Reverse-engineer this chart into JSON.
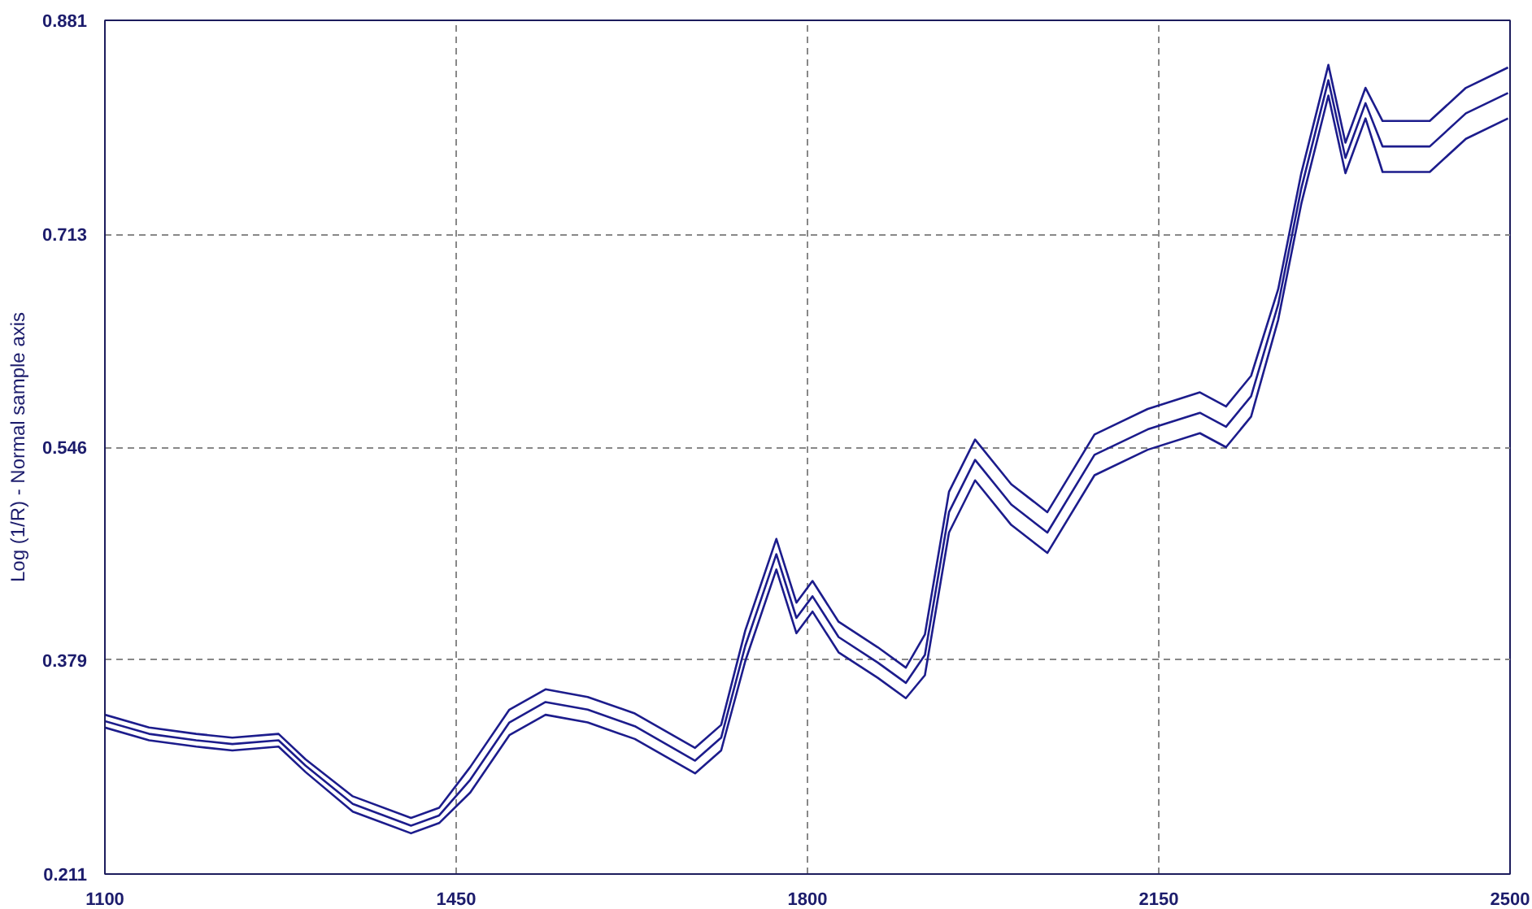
{
  "chart_data": {
    "type": "line",
    "ylabel": "Log (1/R) - Normal sample axis",
    "x": [
      1100,
      1144,
      1191,
      1227,
      1273,
      1300,
      1347,
      1405,
      1433,
      1464,
      1503,
      1539,
      1581,
      1628,
      1688,
      1714,
      1738,
      1769,
      1789,
      1805,
      1831,
      1870,
      1898,
      1917,
      1941,
      1967,
      2003,
      2039,
      2086,
      2139,
      2191,
      2217,
      2242,
      2269,
      2292,
      2319,
      2336,
      2356,
      2373,
      2420,
      2456,
      2498
    ],
    "series": [
      {
        "color": "#1c1c8c",
        "values": [
          0.336,
          0.326,
          0.321,
          0.318,
          0.321,
          0.301,
          0.272,
          0.255,
          0.263,
          0.295,
          0.34,
          0.356,
          0.35,
          0.337,
          0.31,
          0.328,
          0.402,
          0.474,
          0.424,
          0.441,
          0.409,
          0.389,
          0.373,
          0.399,
          0.511,
          0.552,
          0.517,
          0.495,
          0.556,
          0.576,
          0.589,
          0.578,
          0.602,
          0.67,
          0.761,
          0.846,
          0.785,
          0.828,
          0.802,
          0.802,
          0.828,
          0.844
        ]
      },
      {
        "color": "#1c1c8c",
        "values": [
          0.331,
          0.321,
          0.316,
          0.313,
          0.316,
          0.296,
          0.266,
          0.249,
          0.257,
          0.285,
          0.33,
          0.346,
          0.34,
          0.327,
          0.3,
          0.318,
          0.39,
          0.462,
          0.412,
          0.429,
          0.397,
          0.377,
          0.361,
          0.383,
          0.495,
          0.536,
          0.501,
          0.479,
          0.54,
          0.56,
          0.573,
          0.562,
          0.586,
          0.658,
          0.749,
          0.834,
          0.773,
          0.816,
          0.782,
          0.782,
          0.808,
          0.824
        ]
      },
      {
        "color": "#1c1c8c",
        "values": [
          0.326,
          0.316,
          0.311,
          0.308,
          0.311,
          0.291,
          0.26,
          0.243,
          0.251,
          0.275,
          0.32,
          0.336,
          0.33,
          0.317,
          0.29,
          0.308,
          0.378,
          0.45,
          0.4,
          0.417,
          0.385,
          0.365,
          0.349,
          0.367,
          0.479,
          0.52,
          0.485,
          0.463,
          0.524,
          0.544,
          0.557,
          0.546,
          0.57,
          0.646,
          0.737,
          0.822,
          0.761,
          0.804,
          0.762,
          0.762,
          0.788,
          0.804
        ]
      }
    ],
    "xlim": [
      1100,
      2500
    ],
    "xticks": [
      1100,
      1450,
      1800,
      2150,
      2500
    ],
    "ylim": [
      0.211,
      0.881
    ],
    "yticks": [
      0.211,
      0.379,
      0.546,
      0.713,
      0.881
    ],
    "grid": true,
    "line_style": "solid",
    "marker": "none"
  }
}
